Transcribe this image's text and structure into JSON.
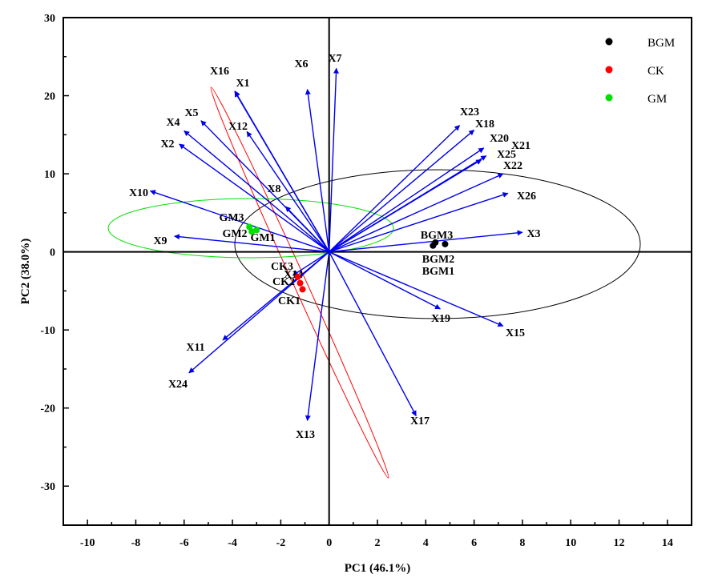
{
  "chart_data": {
    "type": "scatter",
    "subtype": "pca-biplot",
    "xlabel": "PC1 (46.1%)",
    "ylabel": "PC2 (38.0%)",
    "xlim": [
      -11,
      15
    ],
    "ylim": [
      -35,
      30
    ],
    "xticks": [
      -10,
      -8,
      -6,
      -4,
      -2,
      0,
      2,
      4,
      6,
      8,
      10,
      12,
      14
    ],
    "yticks": [
      -30,
      -20,
      -10,
      0,
      10,
      20,
      30
    ],
    "legend_position": "top-right",
    "series": [
      {
        "name": "BGM",
        "color": "#000000",
        "points": [
          {
            "label": "BGM1",
            "x": 4.3,
            "y": 0.8
          },
          {
            "label": "BGM2",
            "x": 4.4,
            "y": 1.2
          },
          {
            "label": "BGM3",
            "x": 4.8,
            "y": 1.0
          }
        ]
      },
      {
        "name": "CK",
        "color": "#ff0000",
        "points": [
          {
            "label": "CK1",
            "x": -1.1,
            "y": -4.8
          },
          {
            "label": "CK2",
            "x": -1.2,
            "y": -4.0
          },
          {
            "label": "CK3",
            "x": -1.3,
            "y": -3.2
          }
        ]
      },
      {
        "name": "GM",
        "color": "#00e000",
        "points": [
          {
            "label": "GM1",
            "x": -3.0,
            "y": 2.8
          },
          {
            "label": "GM2",
            "x": -3.2,
            "y": 2.6
          },
          {
            "label": "GM3",
            "x": -3.3,
            "y": 3.2
          }
        ]
      }
    ],
    "loadings": [
      {
        "name": "X1",
        "x": -3.9,
        "y": 20.5
      },
      {
        "name": "X2",
        "x": -6.2,
        "y": 13.8
      },
      {
        "name": "X3",
        "x": 8.0,
        "y": 2.5
      },
      {
        "name": "X4",
        "x": -6.0,
        "y": 15.5
      },
      {
        "name": "X5",
        "x": -5.3,
        "y": 16.8
      },
      {
        "name": "X6",
        "x": -0.9,
        "y": 20.8
      },
      {
        "name": "X7",
        "x": 0.3,
        "y": 23.5
      },
      {
        "name": "X8",
        "x": -1.8,
        "y": 5.8
      },
      {
        "name": "X9",
        "x": -6.4,
        "y": 2.0
      },
      {
        "name": "X10",
        "x": -7.4,
        "y": 7.8
      },
      {
        "name": "X11",
        "x": -4.4,
        "y": -11.3
      },
      {
        "name": "X12",
        "x": -3.4,
        "y": 15.4
      },
      {
        "name": "X13",
        "x": -0.9,
        "y": -21.6
      },
      {
        "name": "X14",
        "x": -1.5,
        "y": -3.0
      },
      {
        "name": "X15",
        "x": 7.2,
        "y": -9.5
      },
      {
        "name": "X16",
        "x": -3.9,
        "y": 20.6
      },
      {
        "name": "X17",
        "x": 3.6,
        "y": -21.0
      },
      {
        "name": "X18",
        "x": 6.0,
        "y": 15.6
      },
      {
        "name": "X19",
        "x": 4.6,
        "y": -7.3
      },
      {
        "name": "X20",
        "x": 6.4,
        "y": 13.3
      },
      {
        "name": "X21",
        "x": 6.5,
        "y": 12.3
      },
      {
        "name": "X22",
        "x": 7.2,
        "y": 10.0
      },
      {
        "name": "X23",
        "x": 5.4,
        "y": 16.2
      },
      {
        "name": "X24",
        "x": -5.8,
        "y": -15.5
      },
      {
        "name": "X25",
        "x": 6.3,
        "y": 11.8
      },
      {
        "name": "X26",
        "x": 7.4,
        "y": 7.5
      }
    ],
    "ellipses": [
      {
        "group": "BGM",
        "color": "#000000"
      },
      {
        "group": "CK",
        "color": "#ff0000"
      },
      {
        "group": "GM",
        "color": "#00e000"
      }
    ]
  }
}
